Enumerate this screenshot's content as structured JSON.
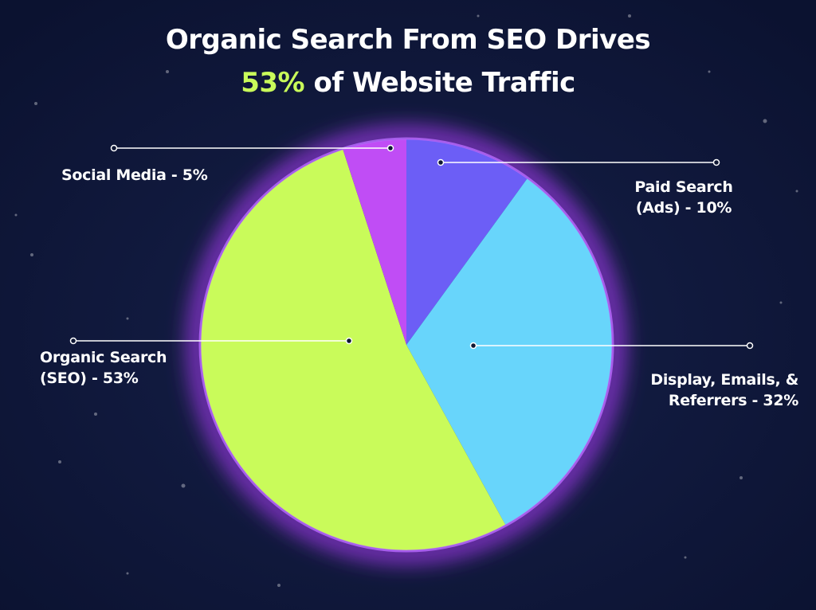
{
  "chart_data": {
    "type": "pie",
    "title": "Organic Search From SEO Drives",
    "title_highlight": "53%",
    "title_rest": "of Website Traffic",
    "categories": [
      "Paid Search (Ads) - 10%",
      "Display, Emails, & Referrers - 32%",
      "Organic Search (SEO) - 53%",
      "Social Media - 5%"
    ],
    "values": [
      10,
      32,
      53,
      5
    ],
    "colors": [
      "#6c5ef6",
      "#68d5fb",
      "#c9fb5a",
      "#c04df5"
    ]
  }
}
